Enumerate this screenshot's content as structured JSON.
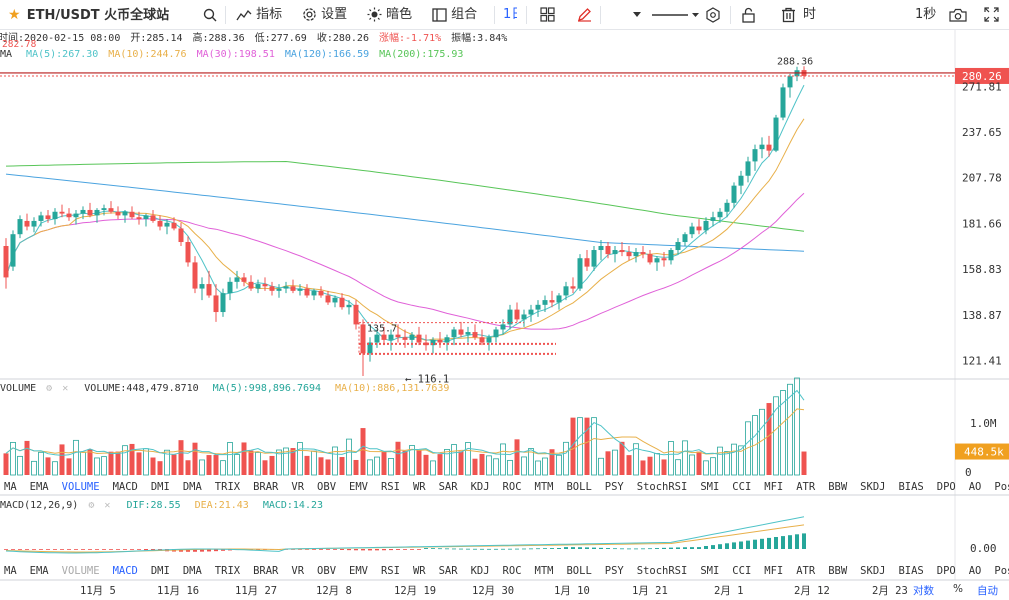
{
  "toolbar": {
    "symbol": "ETH/USDT 火币全球站",
    "indicators": "指标",
    "settings": "设置",
    "dark": "暗色",
    "combo": "组合",
    "interval": "1日",
    "time_btn": "时",
    "seconds": "1秒"
  },
  "info": {
    "time": "时间:2020-02-15 08:00",
    "open": "开:285.14",
    "high": "高:288.36",
    "low": "低:277.69",
    "close": "收:280.26",
    "change": "涨幅:-1.71%",
    "amplitude": "振幅:3.84%",
    "prev_label": "282.78",
    "ma_prefix": "MA",
    "ma5": "MA(5):267.30",
    "ma10": "MA(10):244.76",
    "ma30": "MA(30):198.51",
    "ma120": "MA(120):166.59",
    "ma200": "MA(200):175.93"
  },
  "colors": {
    "up": "#26a69a",
    "down": "#ef5350",
    "ma5": "#4fc3c8",
    "ma10": "#e8b04a",
    "ma30": "#e061d8",
    "ma120": "#4aa3df",
    "ma200": "#58c558",
    "accent": "#2962ff"
  },
  "price_panel": {
    "high_marker": "288.36",
    "low_marker": "116.1",
    "range_label": "135.7",
    "last_price": "280.26",
    "ticks": [
      "271.81",
      "237.65",
      "207.78",
      "181.66",
      "158.83",
      "138.87",
      "121.41"
    ]
  },
  "volume_panel": {
    "label": "VOLUME",
    "value": "VOLUME:448,479.8710",
    "ma5": "MA(5):998,896.7694",
    "ma10": "MA(10):886,131.7639",
    "ticks": [
      "1.0M",
      "0"
    ],
    "last": "448.5k"
  },
  "macd_panel": {
    "label": "MACD(12,26,9)",
    "dif": "DIF:28.55",
    "dea": "DEA:21.43",
    "macd": "MACD:14.23",
    "tick": "0.00"
  },
  "indicator_tabs": [
    "MA",
    "EMA",
    "VOLUME",
    "MACD",
    "DMI",
    "DMA",
    "TRIX",
    "BRAR",
    "VR",
    "OBV",
    "EMV",
    "RSI",
    "WR",
    "SAR",
    "KDJ",
    "ROC",
    "MTM",
    "BOLL",
    "PSY",
    "StochRSI",
    "SMI",
    "CCI",
    "MFI",
    "ATR",
    "BBW",
    "SKDJ",
    "BIAS",
    "DPO",
    "AO",
    "Position"
  ],
  "active_tab_1": "VOLUME",
  "active_tab_2": "MACD",
  "xaxis": {
    "labels": [
      "11月 5",
      "11月 16",
      "11月 27",
      "12月 8",
      "12月 19",
      "12月 30",
      "1月 10",
      "1月 21",
      "2月 1",
      "2月 12",
      "2月 23"
    ],
    "log": "对数",
    "pct": "%",
    "auto": "自动"
  },
  "chart_data": {
    "type": "candlestick",
    "pair": "ETH/USDT",
    "ylim": [
      116,
      292
    ],
    "log_scale": true,
    "candles": [
      [
        170,
        174,
        150,
        155
      ],
      [
        160,
        178,
        158,
        176
      ],
      [
        176,
        186,
        174,
        184
      ],
      [
        183,
        187,
        178,
        180
      ],
      [
        180,
        185,
        177,
        183
      ],
      [
        183,
        188,
        180,
        186
      ],
      [
        186,
        189,
        182,
        184
      ],
      [
        184,
        190,
        181,
        188
      ],
      [
        188,
        192,
        185,
        187
      ],
      [
        187,
        190,
        183,
        185
      ],
      [
        185,
        189,
        181,
        187
      ],
      [
        187,
        191,
        184,
        189
      ],
      [
        189,
        193,
        185,
        186
      ],
      [
        186,
        190,
        182,
        189
      ],
      [
        189,
        192,
        186,
        190
      ],
      [
        190,
        194,
        187,
        188
      ],
      [
        188,
        191,
        184,
        186
      ],
      [
        186,
        189,
        182,
        188
      ],
      [
        188,
        191,
        184,
        185
      ],
      [
        185,
        188,
        181,
        184
      ],
      [
        184,
        187,
        180,
        186
      ],
      [
        186,
        189,
        182,
        183
      ],
      [
        183,
        186,
        178,
        180
      ],
      [
        180,
        184,
        176,
        182
      ],
      [
        182,
        185,
        178,
        179
      ],
      [
        179,
        182,
        170,
        172
      ],
      [
        172,
        175,
        160,
        162
      ],
      [
        162,
        165,
        148,
        150
      ],
      [
        150,
        155,
        145,
        152
      ],
      [
        152,
        158,
        146,
        147
      ],
      [
        147,
        152,
        136,
        140
      ],
      [
        140,
        150,
        138,
        148
      ],
      [
        148,
        155,
        145,
        153
      ],
      [
        153,
        158,
        150,
        155
      ],
      [
        155,
        157,
        151,
        153
      ],
      [
        153,
        156,
        149,
        150
      ],
      [
        150,
        154,
        148,
        152
      ],
      [
        152,
        155,
        149,
        151
      ],
      [
        151,
        153,
        147,
        149
      ],
      [
        149,
        152,
        146,
        150
      ],
      [
        150,
        153,
        148,
        151
      ],
      [
        151,
        154,
        148,
        149
      ],
      [
        149,
        152,
        147,
        150
      ],
      [
        150,
        152,
        146,
        147
      ],
      [
        147,
        150,
        145,
        149
      ],
      [
        149,
        151,
        146,
        147
      ],
      [
        147,
        149,
        143,
        144
      ],
      [
        144,
        147,
        142,
        146
      ],
      [
        146,
        148,
        141,
        142
      ],
      [
        142,
        145,
        139,
        143
      ],
      [
        143,
        145,
        133,
        135
      ],
      [
        135,
        137,
        116,
        124
      ],
      [
        124,
        130,
        121,
        128
      ],
      [
        128,
        133,
        126,
        131
      ],
      [
        131,
        134,
        127,
        129
      ],
      [
        129,
        133,
        125,
        131
      ],
      [
        131,
        135,
        128,
        130
      ],
      [
        130,
        133,
        126,
        129
      ],
      [
        129,
        132,
        126,
        131
      ],
      [
        131,
        134,
        127,
        128
      ],
      [
        128,
        131,
        125,
        127
      ],
      [
        127,
        130,
        124,
        129
      ],
      [
        129,
        132,
        126,
        128
      ],
      [
        128,
        131,
        125,
        130
      ],
      [
        130,
        134,
        127,
        133
      ],
      [
        133,
        136,
        130,
        131
      ],
      [
        131,
        134,
        128,
        132
      ],
      [
        132,
        135,
        129,
        130
      ],
      [
        130,
        133,
        127,
        128
      ],
      [
        128,
        131,
        125,
        130
      ],
      [
        130,
        134,
        128,
        133
      ],
      [
        133,
        137,
        131,
        135
      ],
      [
        135,
        143,
        133,
        141
      ],
      [
        141,
        144,
        136,
        137
      ],
      [
        137,
        141,
        134,
        139
      ],
      [
        139,
        143,
        136,
        141
      ],
      [
        141,
        145,
        138,
        143
      ],
      [
        143,
        147,
        140,
        145
      ],
      [
        145,
        149,
        142,
        144
      ],
      [
        144,
        148,
        141,
        147
      ],
      [
        147,
        153,
        145,
        151
      ],
      [
        151,
        155,
        148,
        150
      ],
      [
        150,
        166,
        149,
        164
      ],
      [
        164,
        168,
        158,
        160
      ],
      [
        160,
        170,
        158,
        168
      ],
      [
        168,
        173,
        163,
        170
      ],
      [
        170,
        172,
        164,
        166
      ],
      [
        166,
        170,
        162,
        168
      ],
      [
        168,
        172,
        165,
        167
      ],
      [
        167,
        170,
        163,
        165
      ],
      [
        165,
        169,
        162,
        167
      ],
      [
        167,
        170,
        164,
        166
      ],
      [
        166,
        168,
        161,
        162
      ],
      [
        162,
        165,
        158,
        164
      ],
      [
        164,
        167,
        160,
        163
      ],
      [
        163,
        169,
        161,
        168
      ],
      [
        168,
        174,
        166,
        172
      ],
      [
        172,
        177,
        170,
        176
      ],
      [
        176,
        182,
        174,
        180
      ],
      [
        180,
        184,
        176,
        178
      ],
      [
        178,
        185,
        176,
        183
      ],
      [
        183,
        188,
        180,
        185
      ],
      [
        185,
        190,
        182,
        188
      ],
      [
        188,
        195,
        185,
        193
      ],
      [
        193,
        205,
        190,
        203
      ],
      [
        203,
        212,
        198,
        209
      ],
      [
        209,
        221,
        205,
        218
      ],
      [
        218,
        229,
        212,
        226
      ],
      [
        226,
        234,
        220,
        229
      ],
      [
        229,
        235,
        221,
        225
      ],
      [
        225,
        250,
        224,
        248
      ],
      [
        248,
        274,
        246,
        271
      ],
      [
        271,
        282,
        263,
        280
      ],
      [
        280,
        288,
        276,
        285
      ],
      [
        285.14,
        288.36,
        277.69,
        280.26
      ]
    ],
    "volume_ticks": [
      "1.0M",
      "0"
    ],
    "volume_last": 448479.871,
    "macd": {
      "dif": 28.55,
      "dea": 21.43,
      "macd": 14.23
    }
  }
}
